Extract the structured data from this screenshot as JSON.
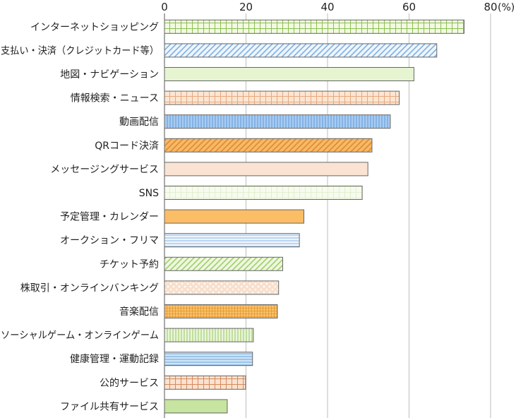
{
  "chart_data": {
    "type": "bar",
    "orientation": "horizontal",
    "unit": "(%)",
    "xlim": [
      0,
      80
    ],
    "ticks": [
      0,
      20,
      40,
      60,
      80
    ],
    "grid": true,
    "title": "",
    "xlabel": "",
    "ylabel": "",
    "categories": [
      "インターネットショッピング",
      "支払い・決済（クレジットカード等）",
      "地図・ナビゲーション",
      "情報検索・ニュース",
      "動画配信",
      "QRコード決済",
      "メッセージングサービス",
      "SNS",
      "予定管理・カレンダー",
      "オークション・フリマ",
      "チケット予約",
      "株取引・オンラインバンキング",
      "音楽配信",
      "ソーシャルゲーム・オンラインゲーム",
      "健康管理・運動記録",
      "公的サービス",
      "ファイル共有サービス"
    ],
    "values": [
      73.5,
      66.8,
      61.2,
      57.6,
      55.4,
      50.9,
      49.9,
      48.5,
      34.2,
      33.1,
      29.0,
      28.0,
      27.7,
      21.8,
      21.6,
      19.9,
      15.4
    ],
    "bar_styles": [
      {
        "fill": "#f2f9e4",
        "stroke": "#8cc04e",
        "pattern": "grid"
      },
      {
        "fill": "#eef5fc",
        "stroke": "#7fb0e0",
        "pattern": "diag"
      },
      {
        "fill": "#e6f4d2",
        "stroke": "#7bb04a",
        "pattern": "none"
      },
      {
        "fill": "#fbe6d4",
        "stroke": "#e8a77c",
        "pattern": "grid"
      },
      {
        "fill": "#a9cdf1",
        "stroke": "#5f98d6",
        "pattern": "vlines"
      },
      {
        "fill": "#f6b967",
        "stroke": "#e08a2e",
        "pattern": "diag"
      },
      {
        "fill": "#fbe3d4",
        "stroke": "#d9a08c",
        "pattern": "none"
      },
      {
        "fill": "#f7fbef",
        "stroke": "#a9d47a",
        "pattern": "dotgrid"
      },
      {
        "fill": "#fbbd66",
        "stroke": "#e38d22",
        "pattern": "none"
      },
      {
        "fill": "#eef5fc",
        "stroke": "#8ab8e6",
        "pattern": "hlines"
      },
      {
        "fill": "#eef7df",
        "stroke": "#9fcf6b",
        "pattern": "diag"
      },
      {
        "fill": "#f8e0cd",
        "stroke": "#d79b76",
        "pattern": "dots"
      },
      {
        "fill": "#fbc069",
        "stroke": "#e0962f",
        "pattern": "finegrid"
      },
      {
        "fill": "#eaf5d9",
        "stroke": "#98c864",
        "pattern": "vlines"
      },
      {
        "fill": "#cfe4f7",
        "stroke": "#6aa3db",
        "pattern": "hlines"
      },
      {
        "fill": "#fbe2d0",
        "stroke": "#d58a5b",
        "pattern": "grid"
      },
      {
        "fill": "#c7e4a0",
        "stroke": "#78ad42",
        "pattern": "none"
      }
    ]
  }
}
